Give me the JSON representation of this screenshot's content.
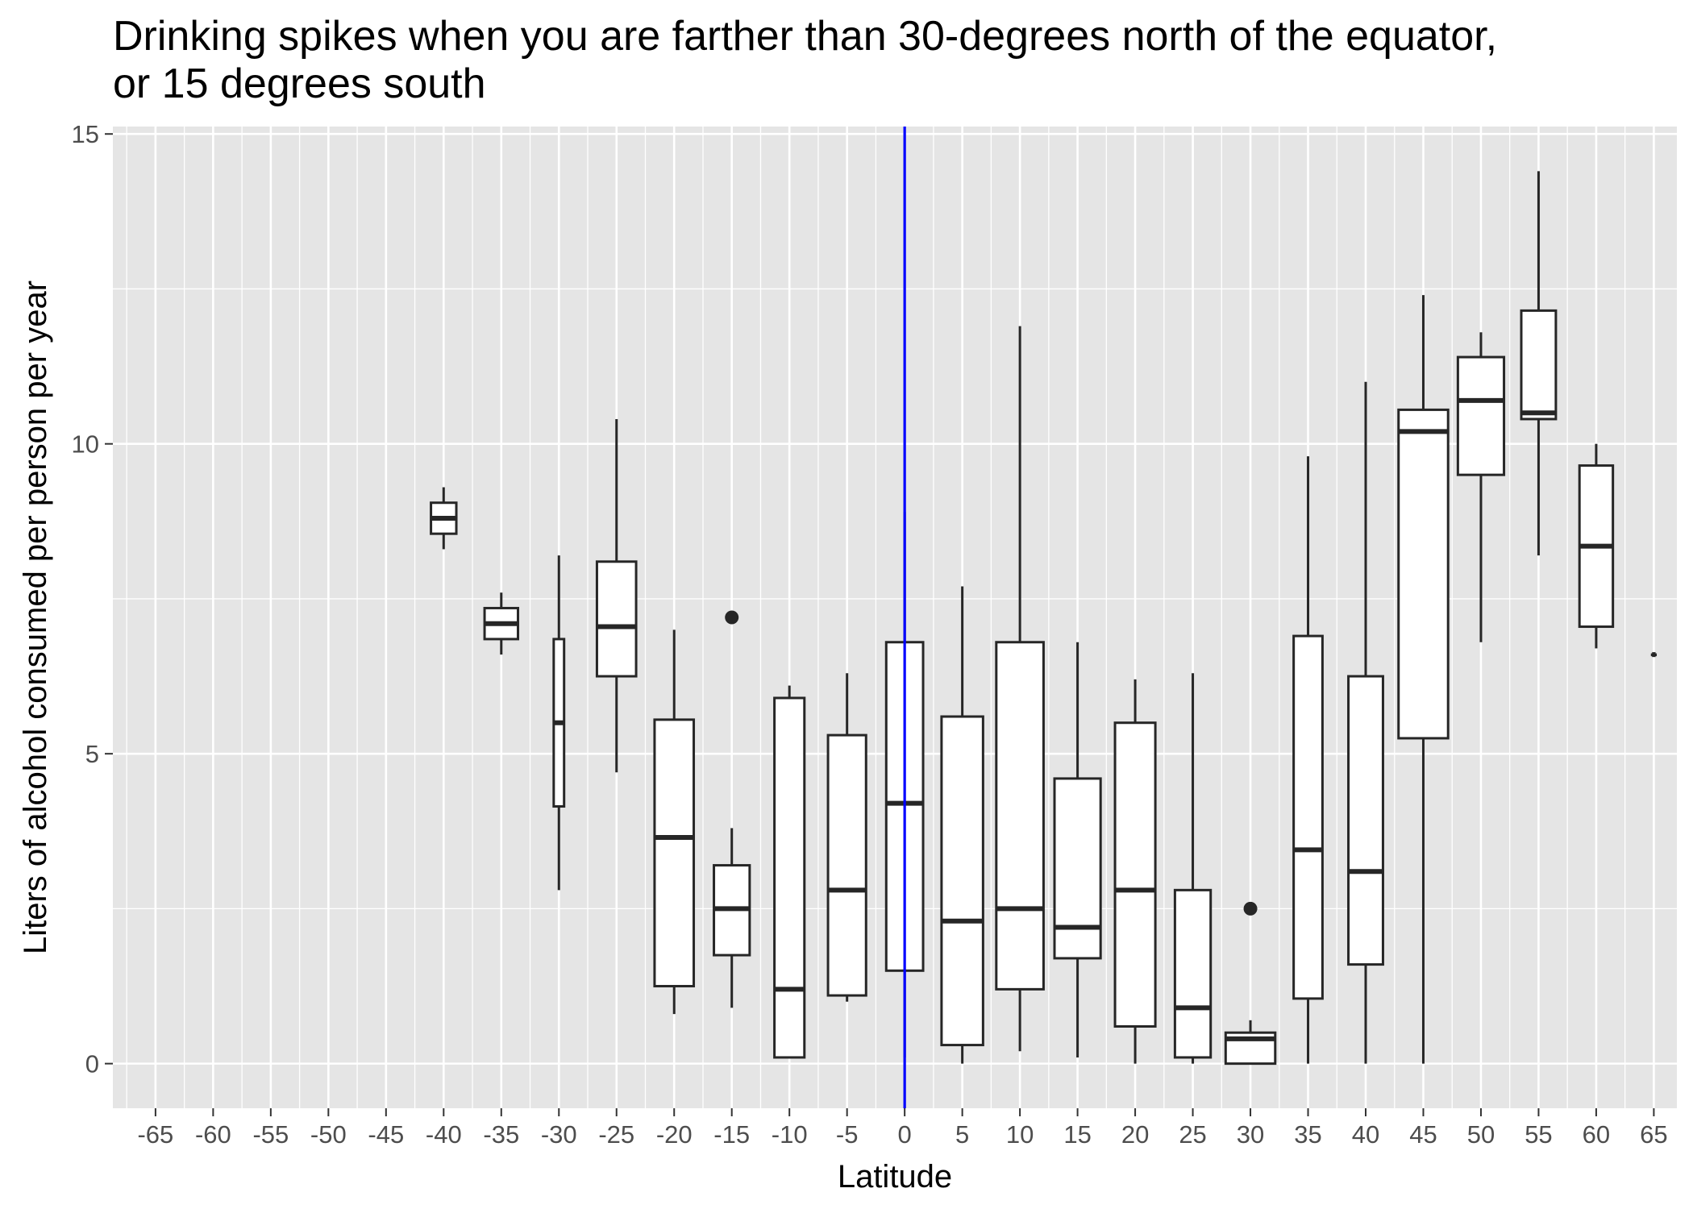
{
  "chart_data": {
    "type": "boxplot",
    "title_lines": [
      "Drinking spikes when you are farther than 30-degrees north of the equator,",
      "or 15 degrees south"
    ],
    "xlabel": "Latitude",
    "ylabel": "Liters of alcohol consumed per person per year",
    "x_ticks": [
      -65,
      -60,
      -55,
      -50,
      -45,
      -40,
      -35,
      -30,
      -25,
      -20,
      -15,
      -10,
      -5,
      0,
      5,
      10,
      15,
      20,
      25,
      30,
      35,
      40,
      45,
      50,
      55,
      60,
      65
    ],
    "x_range": [
      -68.7,
      67.0
    ],
    "y_ticks": [
      0,
      5,
      10,
      15
    ],
    "y_range": [
      -0.72,
      15.12
    ],
    "grid": true,
    "reference_line": {
      "x": 0,
      "color": "#0000ff"
    },
    "colors": {
      "panel_background": "#e5e5e5",
      "grid": "#ffffff",
      "box_stroke": "#262626",
      "box_fill": "#ffffff"
    },
    "boxes": [
      {
        "x": -40,
        "width": 2.2,
        "whisker_low": 8.3,
        "q1": 8.55,
        "median": 8.8,
        "q3": 9.05,
        "whisker_high": 9.3,
        "outliers": []
      },
      {
        "x": -35,
        "width": 2.9,
        "whisker_low": 6.6,
        "q1": 6.85,
        "median": 7.1,
        "q3": 7.35,
        "whisker_high": 7.6,
        "outliers": []
      },
      {
        "x": -30,
        "width": 0.9,
        "whisker_low": 2.8,
        "q1": 4.15,
        "median": 5.5,
        "q3": 6.85,
        "whisker_high": 8.2,
        "outliers": []
      },
      {
        "x": -25,
        "width": 3.4,
        "whisker_low": 4.7,
        "q1": 6.25,
        "median": 7.05,
        "q3": 8.1,
        "whisker_high": 10.4,
        "outliers": []
      },
      {
        "x": -20,
        "width": 3.4,
        "whisker_low": 0.8,
        "q1": 1.25,
        "median": 3.65,
        "q3": 5.55,
        "whisker_high": 7.0,
        "outliers": []
      },
      {
        "x": -15,
        "width": 3.1,
        "whisker_low": 0.9,
        "q1": 1.75,
        "median": 2.5,
        "q3": 3.2,
        "whisker_high": 3.8,
        "outliers": [
          7.2
        ]
      },
      {
        "x": -10,
        "width": 2.6,
        "whisker_low": 0.1,
        "q1": 0.1,
        "median": 1.2,
        "q3": 5.9,
        "whisker_high": 6.1,
        "outliers": []
      },
      {
        "x": -5,
        "width": 3.3,
        "whisker_low": 1.0,
        "q1": 1.1,
        "median": 2.8,
        "q3": 5.3,
        "whisker_high": 6.3,
        "outliers": []
      },
      {
        "x": 0,
        "width": 3.2,
        "whisker_low": 0.1,
        "q1": 1.5,
        "median": 4.2,
        "q3": 6.8,
        "whisker_high": 8.9,
        "outliers": []
      },
      {
        "x": 5,
        "width": 3.6,
        "whisker_low": 0.0,
        "q1": 0.3,
        "median": 2.3,
        "q3": 5.6,
        "whisker_high": 7.7,
        "outliers": []
      },
      {
        "x": 10,
        "width": 4.1,
        "whisker_low": 0.2,
        "q1": 1.2,
        "median": 2.5,
        "q3": 6.8,
        "whisker_high": 11.9,
        "outliers": []
      },
      {
        "x": 15,
        "width": 4.0,
        "whisker_low": 0.1,
        "q1": 1.7,
        "median": 2.2,
        "q3": 4.6,
        "whisker_high": 6.8,
        "outliers": []
      },
      {
        "x": 20,
        "width": 3.5,
        "whisker_low": 0.0,
        "q1": 0.6,
        "median": 2.8,
        "q3": 5.5,
        "whisker_high": 6.2,
        "outliers": []
      },
      {
        "x": 25,
        "width": 3.1,
        "whisker_low": 0.0,
        "q1": 0.1,
        "median": 0.9,
        "q3": 2.8,
        "whisker_high": 6.3,
        "outliers": []
      },
      {
        "x": 30,
        "width": 4.3,
        "whisker_low": 0.0,
        "q1": 0.0,
        "median": 0.4,
        "q3": 0.5,
        "whisker_high": 0.7,
        "outliers": [
          2.5
        ]
      },
      {
        "x": 35,
        "width": 2.5,
        "whisker_low": 0.0,
        "q1": 1.05,
        "median": 3.45,
        "q3": 6.9,
        "whisker_high": 9.8,
        "outliers": []
      },
      {
        "x": 40,
        "width": 3.0,
        "whisker_low": 0.0,
        "q1": 1.6,
        "median": 3.1,
        "q3": 6.25,
        "whisker_high": 11.0,
        "outliers": []
      },
      {
        "x": 45,
        "width": 4.3,
        "whisker_low": 0.0,
        "q1": 5.25,
        "median": 10.2,
        "q3": 10.55,
        "whisker_high": 12.4,
        "outliers": []
      },
      {
        "x": 50,
        "width": 4.0,
        "whisker_low": 6.8,
        "q1": 9.5,
        "median": 10.7,
        "q3": 11.4,
        "whisker_high": 11.8,
        "outliers": []
      },
      {
        "x": 55,
        "width": 3.0,
        "whisker_low": 8.2,
        "q1": 10.4,
        "median": 10.5,
        "q3": 12.15,
        "whisker_high": 14.4,
        "outliers": []
      },
      {
        "x": 60,
        "width": 2.9,
        "whisker_low": 6.7,
        "q1": 7.05,
        "median": 8.35,
        "q3": 9.65,
        "whisker_high": 10.0,
        "outliers": []
      },
      {
        "x": 65,
        "width": 0.3,
        "whisker_low": 6.6,
        "q1": 6.6,
        "median": 6.6,
        "q3": 6.6,
        "whisker_high": 6.6,
        "outliers": []
      }
    ]
  }
}
